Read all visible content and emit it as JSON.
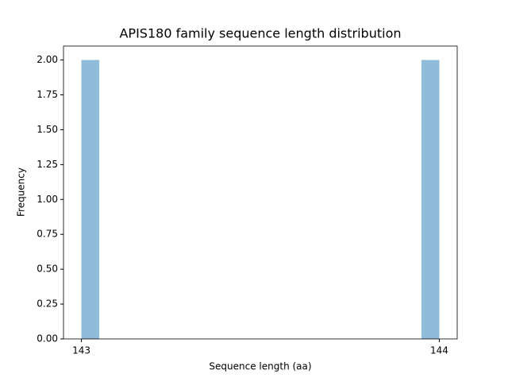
{
  "chart_data": {
    "type": "histogram",
    "title": "APIS180 family sequence length distribution",
    "x_label": "Sequence length (aa)",
    "y_label": "Frequency",
    "bins": [
      143,
      143.05,
      143.1,
      143.15,
      143.2,
      143.25,
      143.3,
      143.35,
      143.4,
      143.45,
      143.5,
      143.55,
      143.6,
      143.65,
      143.7,
      143.75,
      143.8,
      143.85,
      143.9,
      143.95,
      144
    ],
    "counts": [
      2,
      0,
      0,
      0,
      0,
      0,
      0,
      0,
      0,
      0,
      0,
      0,
      0,
      0,
      0,
      0,
      0,
      0,
      0,
      2
    ],
    "color": "#8fbbd9",
    "xlim": [
      142.95,
      144.05
    ],
    "xticks": [
      143,
      144
    ],
    "ylim": [
      0,
      2.1
    ],
    "yticks": [
      {
        "value": 0,
        "label": "0.00"
      },
      {
        "value": 0.25,
        "label": "0.25"
      },
      {
        "value": 0.5,
        "label": "0.50"
      },
      {
        "value": 0.75,
        "label": "0.75"
      },
      {
        "value": 1,
        "label": "1.00"
      },
      {
        "value": 1.25,
        "label": "1.25"
      },
      {
        "value": 1.5,
        "label": "1.50"
      },
      {
        "value": 1.75,
        "label": "1.75"
      },
      {
        "value": 2,
        "label": "2.00"
      }
    ],
    "grid": false
  }
}
